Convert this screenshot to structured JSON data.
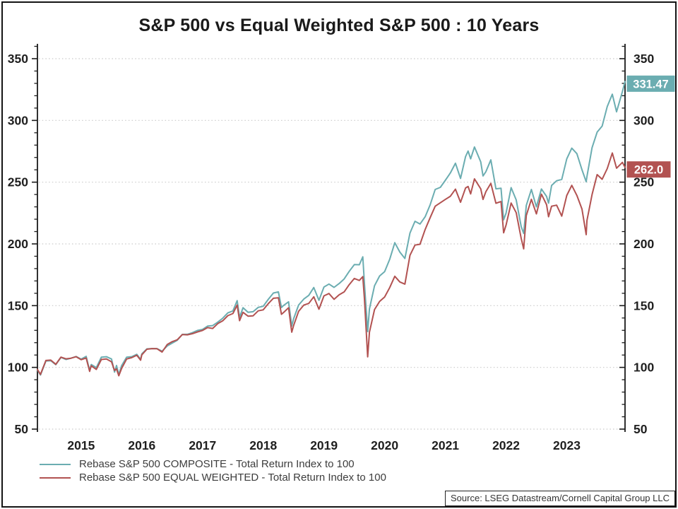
{
  "title": "S&P 500 vs Equal Weighted S&P 500 : 10 Years",
  "source_note": "Source: LSEG Datastream/Cornell Capital Group LLC",
  "colors": {
    "composite": "#6badb1",
    "equal_weighted": "#b25251",
    "grid": "#c9c9c9",
    "axis": "#1a1a1a",
    "tick_label": "#1f1f1f",
    "badge_text": "#ffffff",
    "legend_text": "#3d3d3d"
  },
  "legend": {
    "items": [
      {
        "label": "Rebase S&P 500 COMPOSITE - Total Return Index to 100"
      },
      {
        "label": "Rebase S&P 500 EQUAL WEIGHTED - Total Return Index to 100"
      }
    ]
  },
  "end_labels": {
    "composite": "331.47",
    "equal_weighted": "262.0"
  },
  "chart_data": {
    "type": "line",
    "title": "S&P 500 vs Equal Weighted S&P 500 : 10 Years",
    "grid": "dotted-horizontal",
    "legend_position": "bottom-left",
    "x_axis": {
      "min": 2014.78,
      "max": 2024.46,
      "tick_labels": [
        "2015",
        "2016",
        "2017",
        "2018",
        "2019",
        "2020",
        "2021",
        "2022",
        "2023"
      ],
      "tick_positions": [
        2015.5,
        2016.5,
        2017.5,
        2018.5,
        2019.5,
        2020.5,
        2021.5,
        2022.5,
        2023.5
      ]
    },
    "y_axis": {
      "min": 50,
      "max": 362,
      "major_ticks": [
        50,
        100,
        150,
        200,
        250,
        300,
        350
      ],
      "minor_step": 10,
      "dual_sided": true
    },
    "series": [
      {
        "name": "Rebase S&P 500 COMPOSITE - Total Return Index to 100",
        "color": "#6badb1",
        "end_label": "331.47",
        "points": [
          [
            2014.78,
            98.0
          ],
          [
            2014.83,
            93.8
          ],
          [
            2014.92,
            105.2
          ],
          [
            2015.0,
            105.4
          ],
          [
            2015.083,
            102.2
          ],
          [
            2015.167,
            108.1
          ],
          [
            2015.25,
            106.4
          ],
          [
            2015.333,
            107.4
          ],
          [
            2015.417,
            108.8
          ],
          [
            2015.5,
            106.7
          ],
          [
            2015.583,
            108.9
          ],
          [
            2015.64,
            97.5
          ],
          [
            2015.667,
            102.3
          ],
          [
            2015.75,
            99.8
          ],
          [
            2015.833,
            108.2
          ],
          [
            2015.917,
            108.6
          ],
          [
            2016.0,
            106.8
          ],
          [
            2016.05,
            96.2
          ],
          [
            2016.083,
            101.5
          ],
          [
            2016.12,
            94.2
          ],
          [
            2016.167,
            101.4
          ],
          [
            2016.25,
            108.3
          ],
          [
            2016.333,
            108.7
          ],
          [
            2016.417,
            110.6
          ],
          [
            2016.48,
            106.5
          ],
          [
            2016.5,
            110.9
          ],
          [
            2016.583,
            115.0
          ],
          [
            2016.667,
            115.2
          ],
          [
            2016.75,
            115.2
          ],
          [
            2016.833,
            113.1
          ],
          [
            2016.917,
            117.3
          ],
          [
            2017.0,
            119.6
          ],
          [
            2017.083,
            121.9
          ],
          [
            2017.167,
            126.7
          ],
          [
            2017.25,
            126.8
          ],
          [
            2017.333,
            128.1
          ],
          [
            2017.417,
            129.9
          ],
          [
            2017.5,
            130.7
          ],
          [
            2017.583,
            133.4
          ],
          [
            2017.667,
            133.8
          ],
          [
            2017.75,
            136.6
          ],
          [
            2017.833,
            139.8
          ],
          [
            2017.917,
            144.1
          ],
          [
            2018.0,
            145.7
          ],
          [
            2018.07,
            154.0
          ],
          [
            2018.11,
            140.5
          ],
          [
            2018.167,
            148.3
          ],
          [
            2018.25,
            144.6
          ],
          [
            2018.333,
            145.1
          ],
          [
            2018.417,
            148.6
          ],
          [
            2018.5,
            149.5
          ],
          [
            2018.583,
            155.1
          ],
          [
            2018.667,
            160.2
          ],
          [
            2018.75,
            161.1
          ],
          [
            2018.8,
            148.5
          ],
          [
            2018.833,
            150.1
          ],
          [
            2018.917,
            153.1
          ],
          [
            2018.97,
            133.5
          ],
          [
            2019.0,
            139.3
          ],
          [
            2019.083,
            150.5
          ],
          [
            2019.167,
            155.3
          ],
          [
            2019.25,
            158.3
          ],
          [
            2019.333,
            164.7
          ],
          [
            2019.417,
            154.3
          ],
          [
            2019.5,
            165.1
          ],
          [
            2019.583,
            167.5
          ],
          [
            2019.667,
            164.8
          ],
          [
            2019.75,
            167.9
          ],
          [
            2019.833,
            171.6
          ],
          [
            2019.917,
            177.8
          ],
          [
            2020.0,
            183.2
          ],
          [
            2020.083,
            183.1
          ],
          [
            2020.14,
            189.5
          ],
          [
            2020.167,
            168.0
          ],
          [
            2020.22,
            129.0
          ],
          [
            2020.25,
            147.3
          ],
          [
            2020.333,
            166.1
          ],
          [
            2020.417,
            174.0
          ],
          [
            2020.5,
            177.5
          ],
          [
            2020.583,
            187.5
          ],
          [
            2020.667,
            201.0
          ],
          [
            2020.75,
            193.4
          ],
          [
            2020.833,
            188.2
          ],
          [
            2020.917,
            208.8
          ],
          [
            2021.0,
            218.3
          ],
          [
            2021.083,
            216.1
          ],
          [
            2021.167,
            222.0
          ],
          [
            2021.25,
            231.7
          ],
          [
            2021.333,
            244.1
          ],
          [
            2021.417,
            245.8
          ],
          [
            2021.5,
            251.5
          ],
          [
            2021.583,
            257.5
          ],
          [
            2021.667,
            265.3
          ],
          [
            2021.75,
            253.0
          ],
          [
            2021.833,
            270.7
          ],
          [
            2021.875,
            275.2
          ],
          [
            2021.917,
            268.9
          ],
          [
            2021.98,
            278.5
          ],
          [
            2022.083,
            266.4
          ],
          [
            2022.12,
            255.0
          ],
          [
            2022.167,
            258.4
          ],
          [
            2022.25,
            268.0
          ],
          [
            2022.333,
            244.6
          ],
          [
            2022.417,
            245.1
          ],
          [
            2022.46,
            219.5
          ],
          [
            2022.5,
            224.8
          ],
          [
            2022.583,
            245.6
          ],
          [
            2022.667,
            235.6
          ],
          [
            2022.75,
            213.9
          ],
          [
            2022.79,
            208.5
          ],
          [
            2022.833,
            231.2
          ],
          [
            2022.917,
            244.1
          ],
          [
            2023.0,
            230.0
          ],
          [
            2023.083,
            244.5
          ],
          [
            2023.167,
            238.5
          ],
          [
            2023.2,
            233.0
          ],
          [
            2023.25,
            247.3
          ],
          [
            2023.333,
            251.1
          ],
          [
            2023.417,
            252.2
          ],
          [
            2023.5,
            268.9
          ],
          [
            2023.583,
            277.5
          ],
          [
            2023.667,
            273.1
          ],
          [
            2023.75,
            260.1
          ],
          [
            2023.82,
            250.3
          ],
          [
            2023.833,
            254.6
          ],
          [
            2023.917,
            277.9
          ],
          [
            2024.0,
            290.5
          ],
          [
            2024.083,
            295.4
          ],
          [
            2024.167,
            311.2
          ],
          [
            2024.25,
            321.2
          ],
          [
            2024.32,
            307.0
          ],
          [
            2024.417,
            323.4
          ],
          [
            2024.46,
            331.47
          ]
        ]
      },
      {
        "name": "Rebase S&P 500 EQUAL WEIGHTED - Total Return Index to 100",
        "color": "#b25251",
        "end_label": "262.0",
        "points": [
          [
            2014.78,
            98.3
          ],
          [
            2014.83,
            94.3
          ],
          [
            2014.92,
            105.6
          ],
          [
            2015.0,
            105.9
          ],
          [
            2015.083,
            102.5
          ],
          [
            2015.167,
            108.3
          ],
          [
            2015.25,
            106.9
          ],
          [
            2015.333,
            107.4
          ],
          [
            2015.417,
            108.6
          ],
          [
            2015.5,
            106.2
          ],
          [
            2015.583,
            107.6
          ],
          [
            2015.64,
            96.8
          ],
          [
            2015.667,
            101.3
          ],
          [
            2015.75,
            98.3
          ],
          [
            2015.833,
            106.4
          ],
          [
            2015.917,
            106.8
          ],
          [
            2016.0,
            104.5
          ],
          [
            2016.05,
            97.5
          ],
          [
            2016.083,
            98.8
          ],
          [
            2016.12,
            93.2
          ],
          [
            2016.167,
            99.2
          ],
          [
            2016.25,
            106.8
          ],
          [
            2016.333,
            107.9
          ],
          [
            2016.417,
            109.8
          ],
          [
            2016.48,
            105.8
          ],
          [
            2016.5,
            110.2
          ],
          [
            2016.583,
            114.7
          ],
          [
            2016.667,
            115.2
          ],
          [
            2016.75,
            115.1
          ],
          [
            2016.833,
            112.4
          ],
          [
            2016.917,
            118.5
          ],
          [
            2017.0,
            120.8
          ],
          [
            2017.083,
            122.3
          ],
          [
            2017.167,
            126.6
          ],
          [
            2017.25,
            126.4
          ],
          [
            2017.333,
            127.3
          ],
          [
            2017.417,
            128.7
          ],
          [
            2017.5,
            129.9
          ],
          [
            2017.583,
            132.2
          ],
          [
            2017.667,
            131.5
          ],
          [
            2017.75,
            135.4
          ],
          [
            2017.833,
            137.7
          ],
          [
            2017.917,
            141.9
          ],
          [
            2018.0,
            143.6
          ],
          [
            2018.07,
            150.5
          ],
          [
            2018.11,
            137.8
          ],
          [
            2018.167,
            144.6
          ],
          [
            2018.25,
            141.5
          ],
          [
            2018.333,
            141.8
          ],
          [
            2018.417,
            145.8
          ],
          [
            2018.5,
            146.6
          ],
          [
            2018.583,
            151.6
          ],
          [
            2018.667,
            156.0
          ],
          [
            2018.75,
            156.4
          ],
          [
            2018.8,
            143.0
          ],
          [
            2018.833,
            144.4
          ],
          [
            2018.917,
            148.3
          ],
          [
            2018.97,
            128.5
          ],
          [
            2019.0,
            133.8
          ],
          [
            2019.083,
            145.4
          ],
          [
            2019.167,
            150.4
          ],
          [
            2019.25,
            151.8
          ],
          [
            2019.333,
            157.2
          ],
          [
            2019.417,
            147.1
          ],
          [
            2019.5,
            157.9
          ],
          [
            2019.583,
            159.8
          ],
          [
            2019.667,
            155.1
          ],
          [
            2019.75,
            158.8
          ],
          [
            2019.833,
            161.1
          ],
          [
            2019.917,
            167.0
          ],
          [
            2020.0,
            172.0
          ],
          [
            2020.083,
            170.4
          ],
          [
            2020.14,
            173.5
          ],
          [
            2020.167,
            155.6
          ],
          [
            2020.22,
            108.5
          ],
          [
            2020.25,
            128.5
          ],
          [
            2020.333,
            146.8
          ],
          [
            2020.417,
            153.4
          ],
          [
            2020.5,
            157.0
          ],
          [
            2020.583,
            164.6
          ],
          [
            2020.667,
            173.8
          ],
          [
            2020.75,
            169.2
          ],
          [
            2020.833,
            167.4
          ],
          [
            2020.917,
            190.8
          ],
          [
            2021.0,
            199.0
          ],
          [
            2021.083,
            199.7
          ],
          [
            2021.167,
            211.7
          ],
          [
            2021.25,
            221.3
          ],
          [
            2021.333,
            230.5
          ],
          [
            2021.417,
            233.3
          ],
          [
            2021.5,
            236.0
          ],
          [
            2021.583,
            238.6
          ],
          [
            2021.667,
            244.3
          ],
          [
            2021.75,
            233.7
          ],
          [
            2021.833,
            245.3
          ],
          [
            2021.875,
            246.5
          ],
          [
            2021.917,
            240.5
          ],
          [
            2021.98,
            252.7
          ],
          [
            2022.083,
            244.6
          ],
          [
            2022.12,
            236.0
          ],
          [
            2022.167,
            242.2
          ],
          [
            2022.25,
            249.0
          ],
          [
            2022.333,
            232.9
          ],
          [
            2022.417,
            234.3
          ],
          [
            2022.46,
            209.0
          ],
          [
            2022.5,
            215.1
          ],
          [
            2022.583,
            233.1
          ],
          [
            2022.667,
            225.3
          ],
          [
            2022.75,
            204.4
          ],
          [
            2022.79,
            196.0
          ],
          [
            2022.833,
            223.0
          ],
          [
            2022.917,
            236.1
          ],
          [
            2023.0,
            224.3
          ],
          [
            2023.083,
            240.3
          ],
          [
            2023.167,
            231.8
          ],
          [
            2023.2,
            222.0
          ],
          [
            2023.25,
            230.5
          ],
          [
            2023.333,
            231.4
          ],
          [
            2023.417,
            222.5
          ],
          [
            2023.5,
            239.2
          ],
          [
            2023.583,
            247.4
          ],
          [
            2023.667,
            239.3
          ],
          [
            2023.75,
            228.3
          ],
          [
            2023.82,
            207.5
          ],
          [
            2023.833,
            219.0
          ],
          [
            2023.917,
            239.9
          ],
          [
            2024.0,
            256.1
          ],
          [
            2024.083,
            252.3
          ],
          [
            2024.167,
            261.0
          ],
          [
            2024.25,
            273.6
          ],
          [
            2024.32,
            261.3
          ],
          [
            2024.417,
            266.0
          ],
          [
            2024.46,
            262.0
          ]
        ]
      }
    ]
  }
}
